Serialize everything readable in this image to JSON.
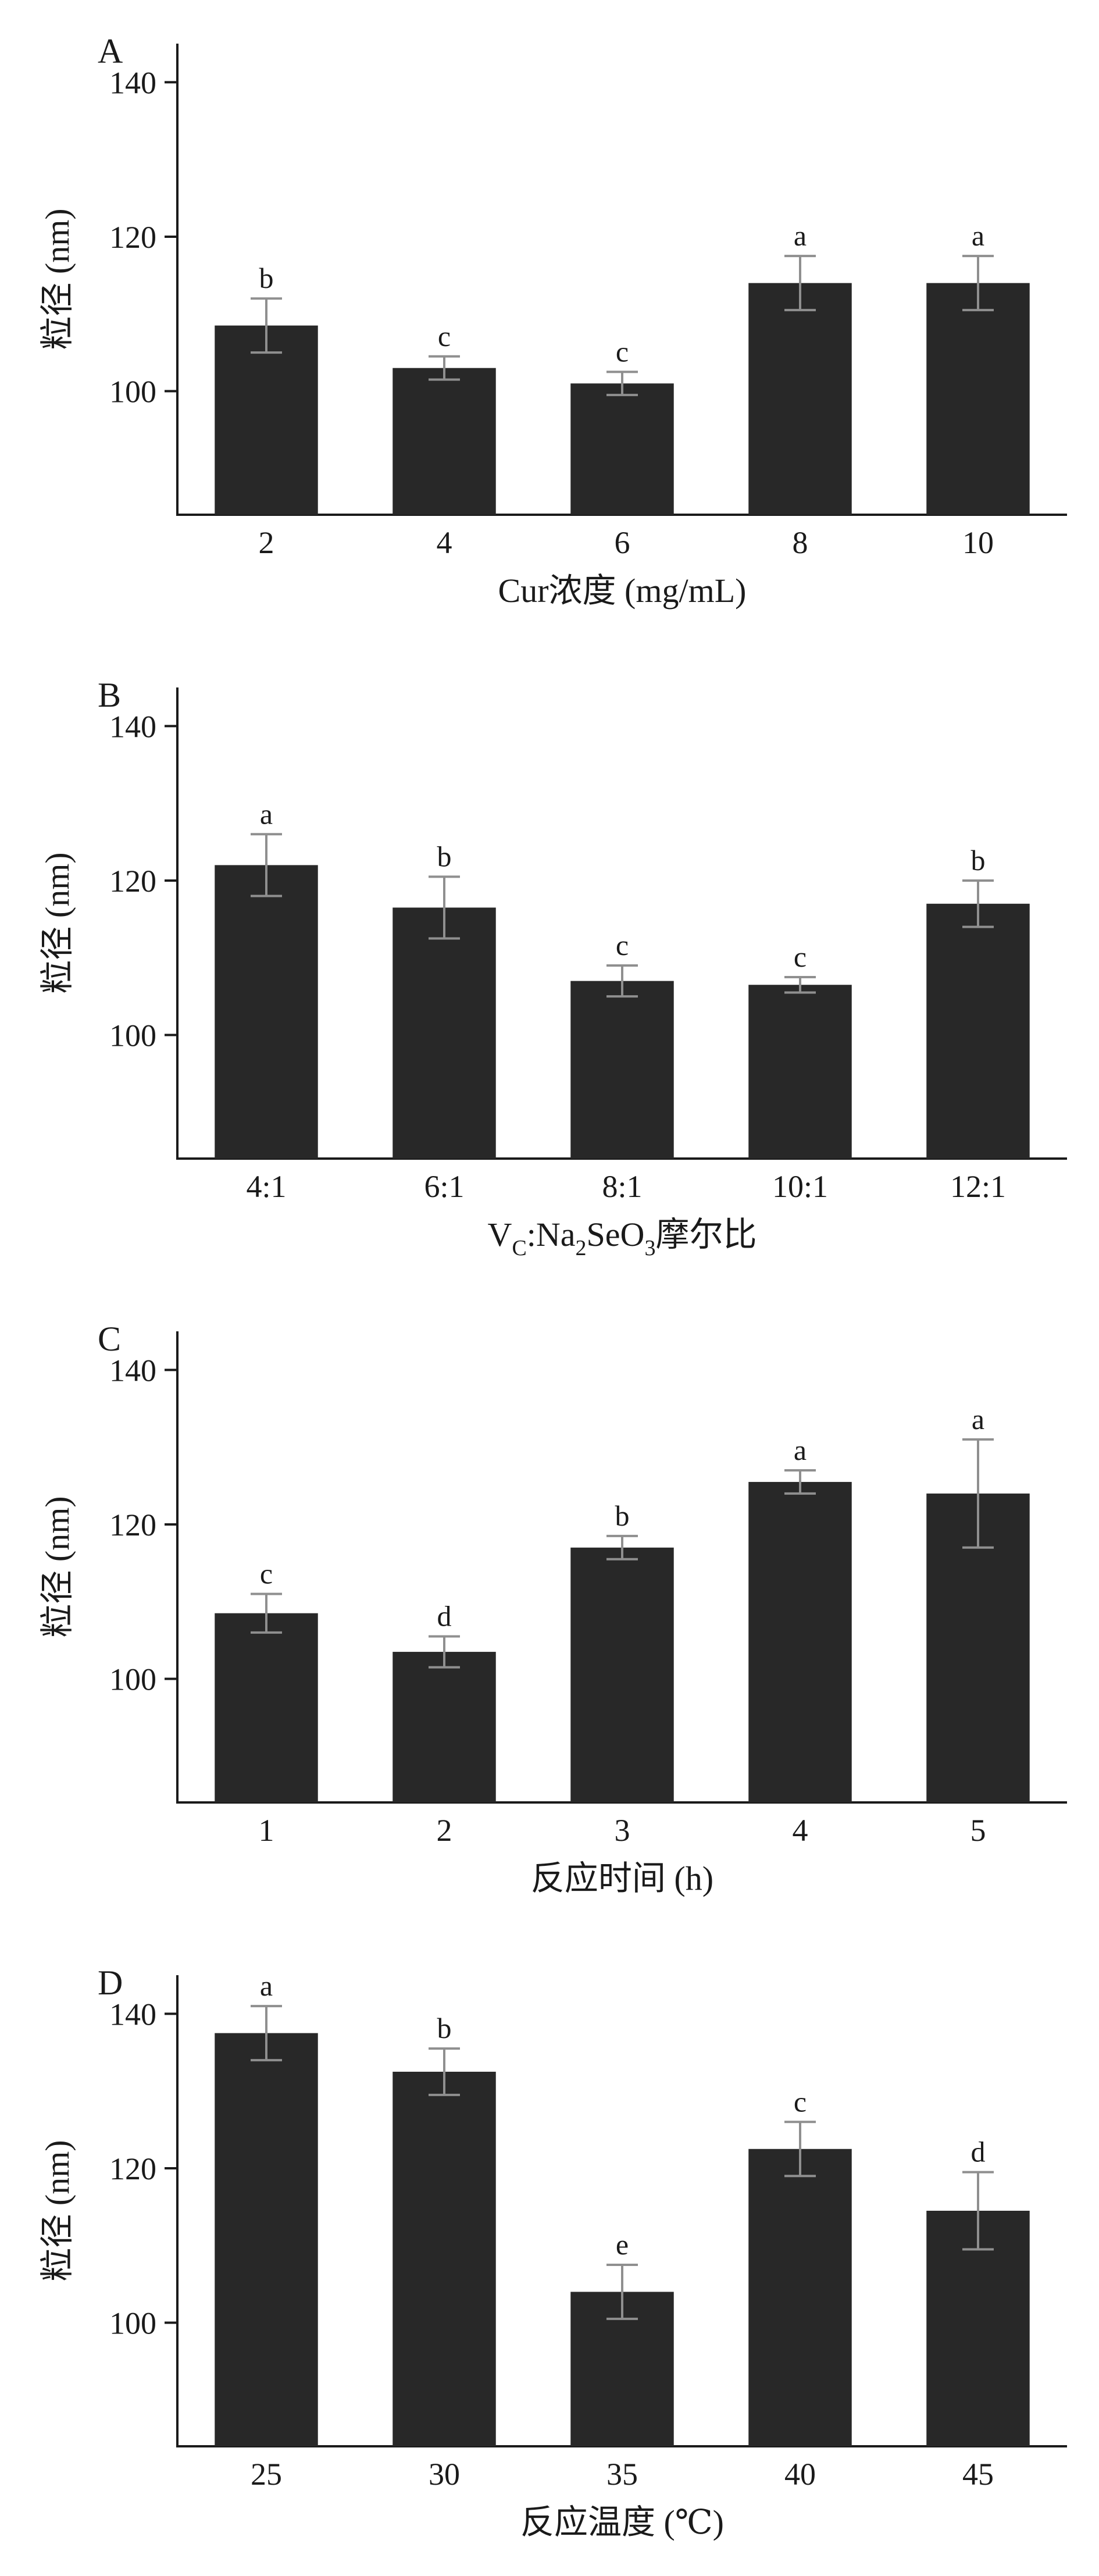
{
  "colors": {
    "bar": "#282828",
    "error": "#8f8f8f",
    "axis": "#1a1a1a",
    "text": "#1a1a1a",
    "background": "#ffffff"
  },
  "chart_data": [
    {
      "type": "bar",
      "panel": "A",
      "title": "",
      "xlabel": "Cur浓度 (mg/mL)",
      "xlabel_rich": [
        {
          "t": "Cur浓度 (mg/mL)"
        }
      ],
      "ylabel": "粒径 (nm)",
      "categories": [
        "2",
        "4",
        "6",
        "8",
        "10"
      ],
      "values": [
        108.5,
        103,
        101,
        114,
        114
      ],
      "errors": [
        3.5,
        1.5,
        1.5,
        3.5,
        3.5
      ],
      "sig_letters": [
        "b",
        "c",
        "c",
        "a",
        "a"
      ],
      "yticks": [
        100,
        120,
        140
      ],
      "ylim": [
        84,
        145
      ],
      "grid": false,
      "legend": "none"
    },
    {
      "type": "bar",
      "panel": "B",
      "title": "",
      "xlabel": "VC:Na2SeO3摩尔比",
      "xlabel_rich": [
        {
          "t": "V"
        },
        {
          "t": "C",
          "sub": true
        },
        {
          "t": ":Na"
        },
        {
          "t": "2",
          "sub": true
        },
        {
          "t": "SeO"
        },
        {
          "t": "3",
          "sub": true
        },
        {
          "t": "摩尔比"
        }
      ],
      "ylabel": "粒径 (nm)",
      "categories": [
        "4:1",
        "6:1",
        "8:1",
        "10:1",
        "12:1"
      ],
      "values": [
        122,
        116.5,
        107,
        106.5,
        117
      ],
      "errors": [
        4,
        4,
        2,
        1,
        3
      ],
      "sig_letters": [
        "a",
        "b",
        "c",
        "c",
        "b"
      ],
      "yticks": [
        100,
        120,
        140
      ],
      "ylim": [
        84,
        145
      ],
      "grid": false,
      "legend": "none"
    },
    {
      "type": "bar",
      "panel": "C",
      "title": "",
      "xlabel": "反应时间 (h)",
      "xlabel_rich": [
        {
          "t": "反应时间 (h)"
        }
      ],
      "ylabel": "粒径 (nm)",
      "categories": [
        "1",
        "2",
        "3",
        "4",
        "5"
      ],
      "values": [
        108.5,
        103.5,
        117,
        125.5,
        124
      ],
      "errors": [
        2.5,
        2,
        1.5,
        1.5,
        7
      ],
      "sig_letters": [
        "c",
        "d",
        "b",
        "a",
        "a"
      ],
      "yticks": [
        100,
        120,
        140
      ],
      "ylim": [
        84,
        145
      ],
      "grid": false,
      "legend": "none"
    },
    {
      "type": "bar",
      "panel": "D",
      "title": "",
      "xlabel": "反应温度 (℃)",
      "xlabel_rich": [
        {
          "t": "反应温度 (℃)"
        }
      ],
      "ylabel": "粒径 (nm)",
      "categories": [
        "25",
        "30",
        "35",
        "40",
        "45"
      ],
      "values": [
        137.5,
        132.5,
        104,
        122.5,
        114.5
      ],
      "errors": [
        3.5,
        3,
        3.5,
        3.5,
        5
      ],
      "sig_letters": [
        "a",
        "b",
        "e",
        "c",
        "d"
      ],
      "yticks": [
        100,
        120,
        140
      ],
      "ylim": [
        84,
        145
      ],
      "grid": false,
      "legend": "none"
    }
  ]
}
